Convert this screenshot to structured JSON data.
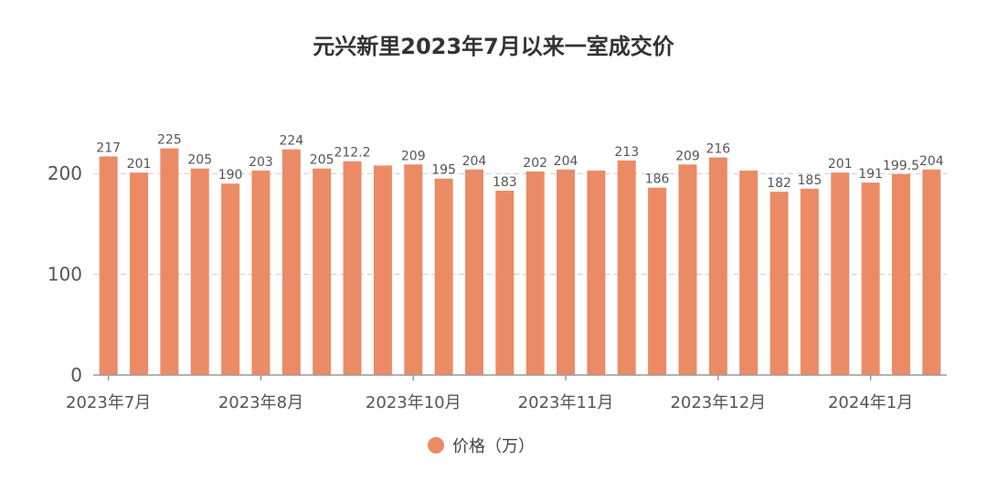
{
  "chart_data": {
    "type": "bar",
    "title": "元兴新里2023年7月以来一室成交价",
    "categories": [
      "2023年7月",
      "",
      "",
      "",
      "",
      "2023年8月",
      "",
      "",
      "",
      "",
      "2023年10月",
      "",
      "",
      "",
      "",
      "2023年11月",
      "",
      "",
      "",
      "",
      "2023年12月",
      "",
      "",
      "",
      "",
      "2024年1月",
      "",
      ""
    ],
    "series": [
      {
        "name": "价格（万）",
        "color": "#EB8B66",
        "values": [
          217,
          201,
          225,
          205,
          190,
          203,
          224,
          205,
          212.2,
          208,
          209,
          195,
          204,
          183,
          202,
          204,
          203,
          213,
          186,
          209,
          216,
          203,
          182,
          185,
          201,
          191,
          199.5,
          204
        ]
      }
    ],
    "data_labels": [
      "217",
      "201",
      "225",
      "205",
      "190",
      "203",
      "224",
      "205",
      "212.2",
      "",
      "209",
      "195",
      "204",
      "183",
      "202",
      "204",
      "",
      "213",
      "186",
      "209",
      "216",
      "",
      "182",
      "185",
      "201",
      "191",
      "199.5",
      "204"
    ],
    "yticks": [
      0,
      100,
      200
    ],
    "ylim": [
      0,
      250
    ],
    "grid": true,
    "legend": "bottom-center"
  }
}
